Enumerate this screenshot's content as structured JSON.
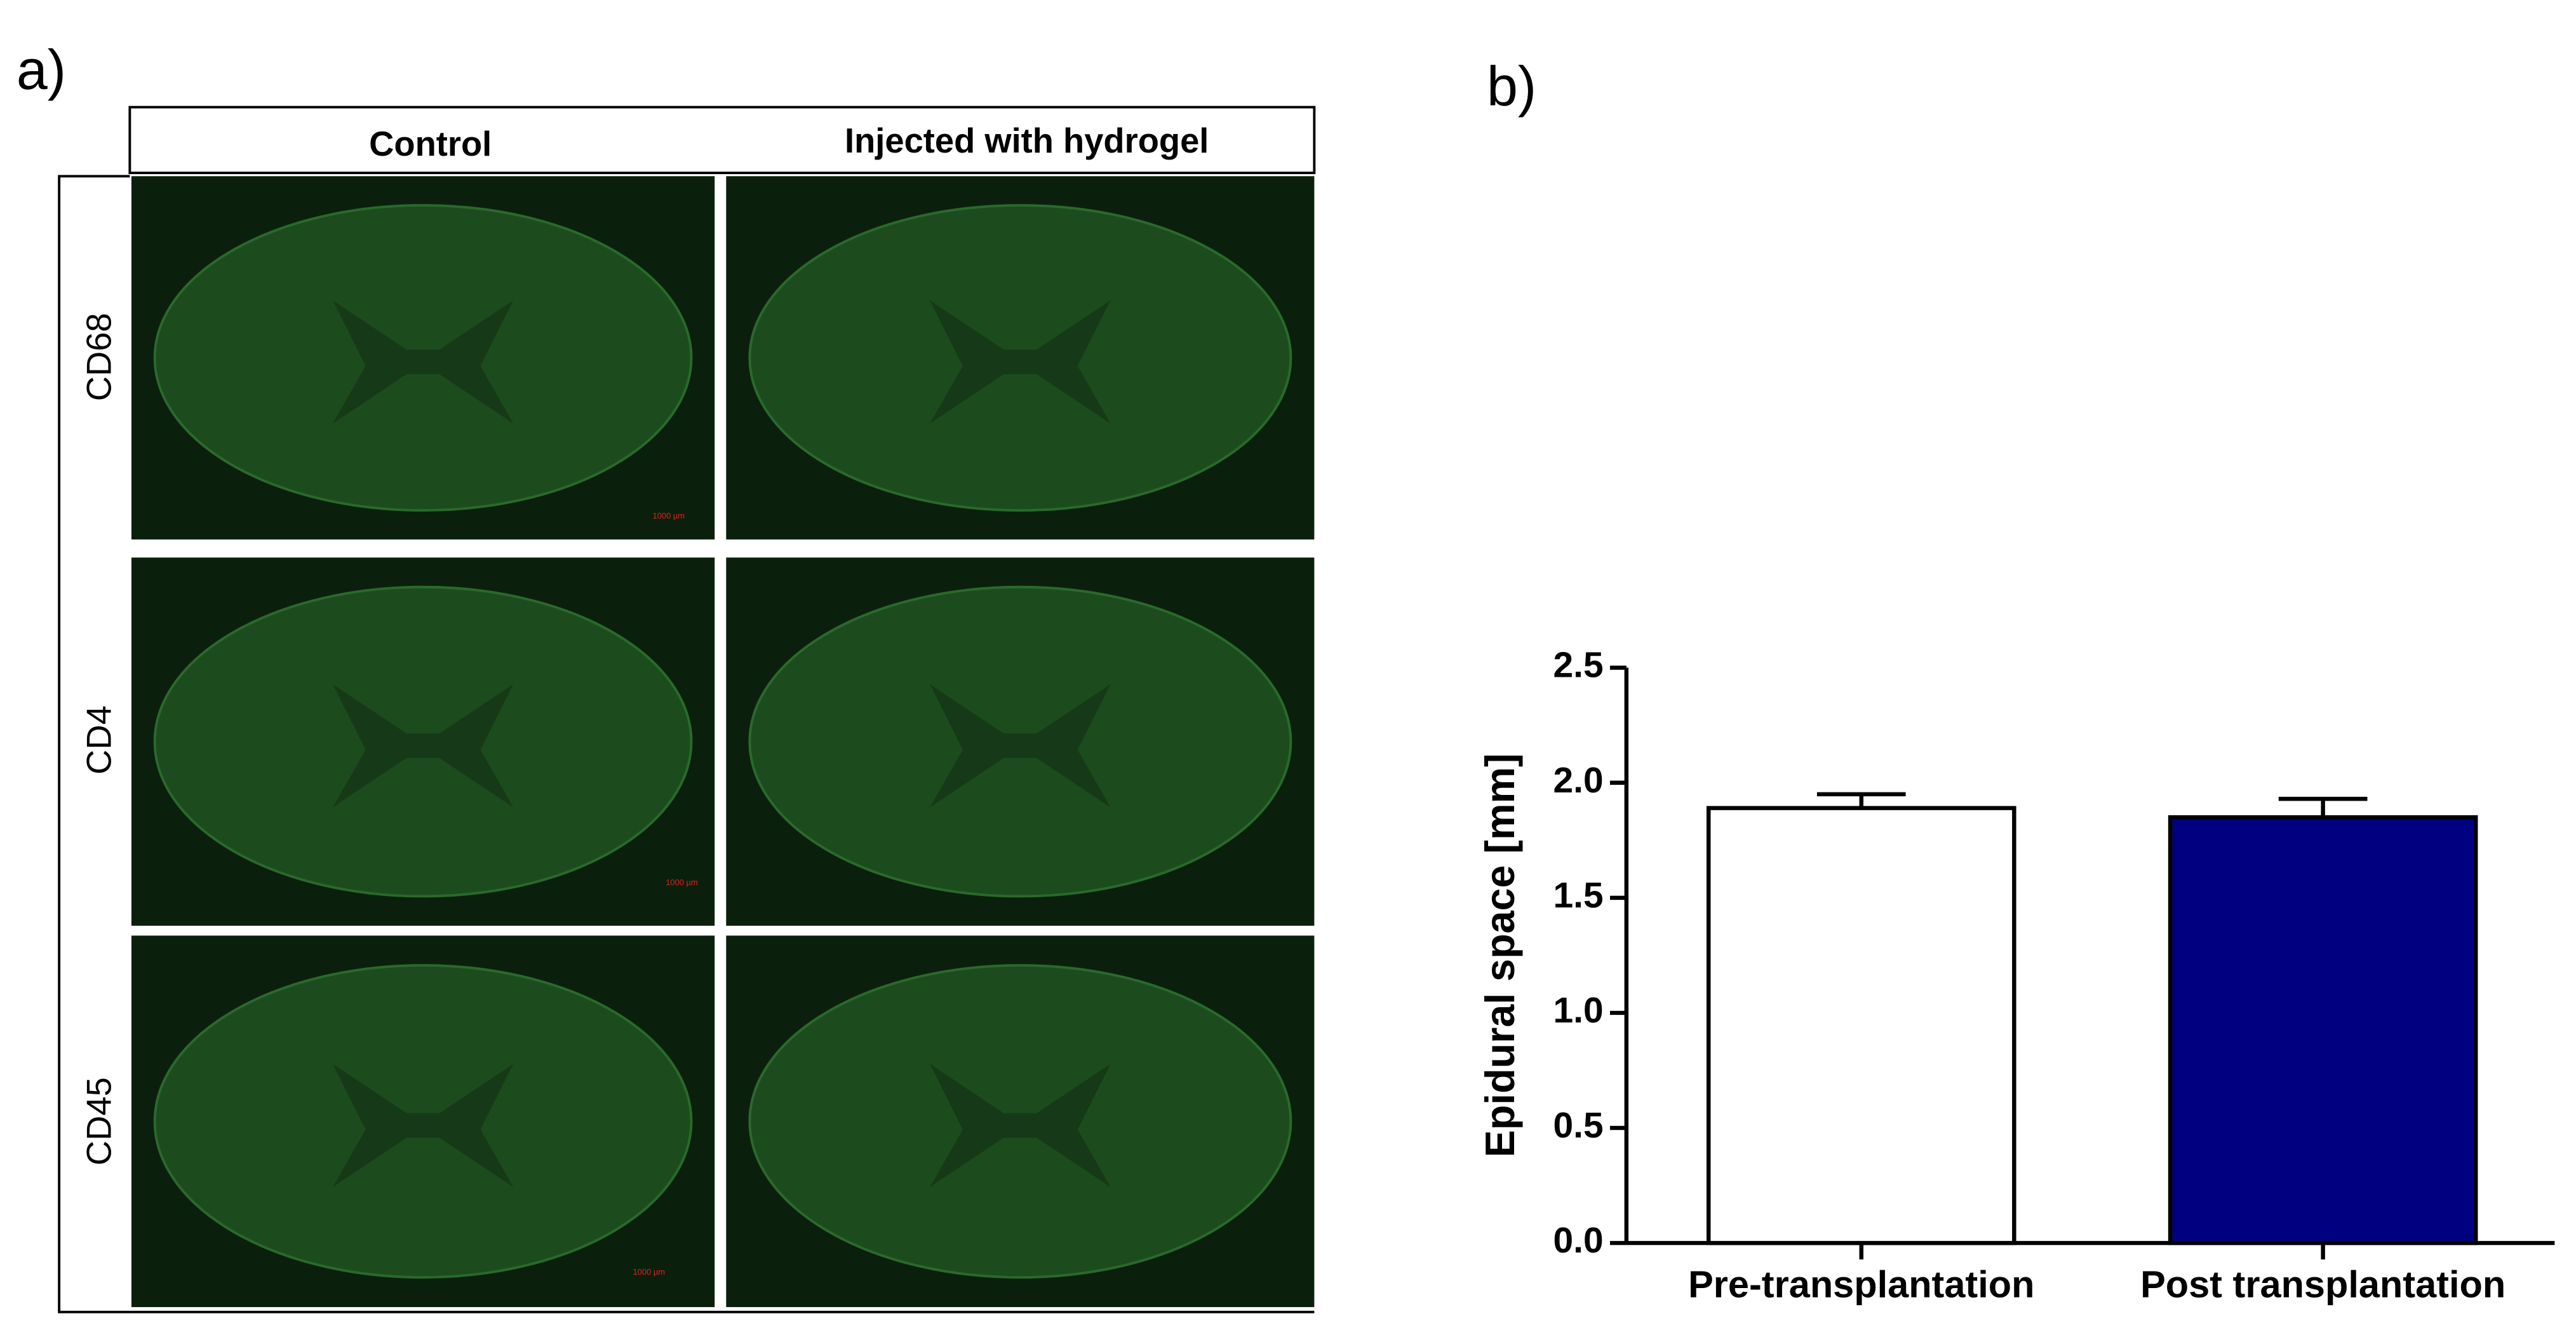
{
  "panel_a": {
    "label": "a)",
    "columns": [
      "Control",
      "Injected with hydrogel"
    ],
    "rows": [
      "CD68",
      "CD4",
      "CD45"
    ],
    "scale_bar_label": "1000 µm"
  },
  "chart_data": {
    "type": "bar",
    "panel_label": "b)",
    "y_label": "Epidural space [mm]",
    "categories": [
      "Pre-transplantation",
      "Post transplantation"
    ],
    "values": [
      1.89,
      1.85
    ],
    "errors": [
      0.06,
      0.08
    ],
    "colors": [
      "#ffffff",
      "#000080"
    ],
    "ylim": [
      0,
      2.5
    ],
    "yticks": [
      {
        "value": 0,
        "label": "0.0"
      },
      0.5,
      {
        "value": 1,
        "label": "1.0"
      },
      1.5,
      {
        "value": 2,
        "label": "2.0"
      },
      2.5
    ]
  }
}
